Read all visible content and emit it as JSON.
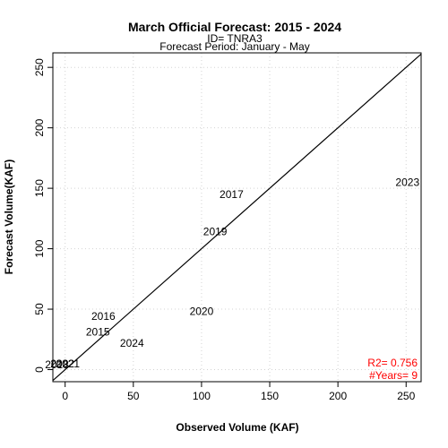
{
  "chart_data": {
    "type": "scatter",
    "title": "March Official Forecast: 2015 - 2024",
    "subtitle_id": "ID= TNRA3",
    "subtitle_period": "Forecast Period:  January - May",
    "xlabel": "Observed Volume (KAF)",
    "ylabel": "Forecast Volume(KAF)",
    "xlim": [
      -9,
      261
    ],
    "ylim": [
      -10,
      262
    ],
    "xticks": [
      0,
      50,
      100,
      150,
      200,
      250
    ],
    "yticks": [
      0,
      50,
      100,
      150,
      200,
      250
    ],
    "grid": true,
    "reference_line": "1:1",
    "points": [
      {
        "label": "2015",
        "x": 24,
        "y": 31
      },
      {
        "label": "2016",
        "x": 28,
        "y": 44
      },
      {
        "label": "2017",
        "x": 122,
        "y": 145
      },
      {
        "label": "2018",
        "x": -6,
        "y": 4
      },
      {
        "label": "2019",
        "x": 110,
        "y": 114
      },
      {
        "label": "2020",
        "x": 100,
        "y": 48
      },
      {
        "label": "2021",
        "x": 2,
        "y": 5
      },
      {
        "label": "2022",
        "x": -2,
        "y": 5
      },
      {
        "label": "2023",
        "x": 251,
        "y": 155
      },
      {
        "label": "2024",
        "x": 49,
        "y": 22
      }
    ],
    "stats": {
      "r2": "R2=  0.756",
      "years": "#Years=  9",
      "color": "#ff0000"
    }
  }
}
